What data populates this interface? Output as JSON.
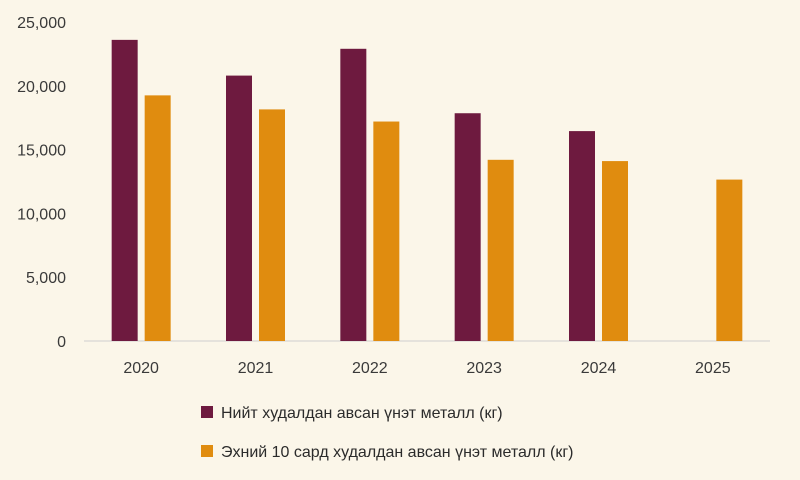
{
  "chart_data": {
    "type": "bar",
    "categories": [
      "2020",
      "2021",
      "2022",
      "2023",
      "2024",
      "2025"
    ],
    "series": [
      {
        "name": "Нийт худалдан авсан үнэт металл (кг)",
        "color": "#6e1a3f",
        "values": [
          23600,
          20800,
          22900,
          17850,
          16450,
          null
        ]
      },
      {
        "name": "Эхний 10 сард худалдан авсан үнэт металл (кг)",
        "color": "#e08c0f",
        "values": [
          19250,
          18150,
          17200,
          14200,
          14100,
          12650
        ]
      }
    ],
    "ylim": [
      0,
      25000
    ],
    "yticks": [
      "0",
      "5,000",
      "10,000",
      "15,000",
      "20,000",
      "25,000"
    ],
    "title": "",
    "xlabel": "",
    "ylabel": "",
    "grid": false,
    "legend_position": "bottom"
  }
}
